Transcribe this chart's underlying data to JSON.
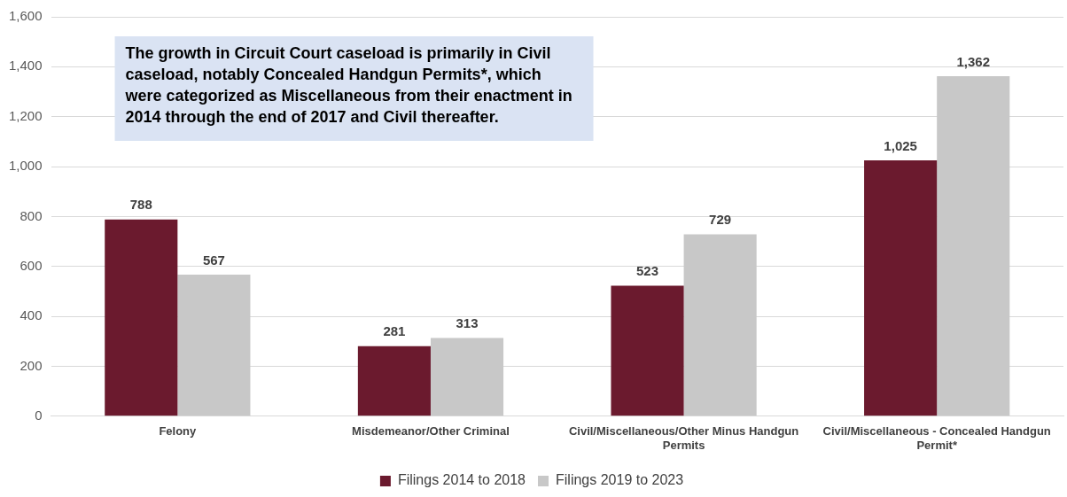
{
  "chart_data": {
    "type": "bar",
    "categories": [
      "Felony",
      "Misdemeanor/Other Criminal",
      "Civil/Miscellaneous/Other Minus Handgun Permits",
      "Civil/Miscellaneous - Concealed Handgun Permit*"
    ],
    "series": [
      {
        "name": "Filings 2014 to 2018",
        "color": "#6b1a2e",
        "values": [
          788,
          281,
          523,
          1025
        ],
        "value_labels": [
          "788",
          "281",
          "523",
          "1,025"
        ]
      },
      {
        "name": "Filings 2019 to 2023",
        "color": "#c8c8c8",
        "values": [
          567,
          313,
          729,
          1362
        ],
        "value_labels": [
          "567",
          "313",
          "729",
          "1,362"
        ]
      }
    ],
    "ylim": [
      0,
      1600
    ],
    "yticks": [
      {
        "value": 0,
        "label": "0"
      },
      {
        "value": 200,
        "label": "200"
      },
      {
        "value": 400,
        "label": "400"
      },
      {
        "value": 600,
        "label": "600"
      },
      {
        "value": 800,
        "label": "800"
      },
      {
        "value": 1000,
        "label": "1,000"
      },
      {
        "value": 1200,
        "label": "1,200"
      },
      {
        "value": 1400,
        "label": "1,400"
      },
      {
        "value": 1600,
        "label": "1,600"
      }
    ],
    "grid": "y",
    "legend": "bottom",
    "annotations": [
      "The growth in Circuit Court caseload is primarily in Civil caseload, notably Concealed Handgun Permits*, which were categorized as Miscellaneous from their enactment in 2014 through the end of 2017 and Civil thereafter."
    ]
  }
}
